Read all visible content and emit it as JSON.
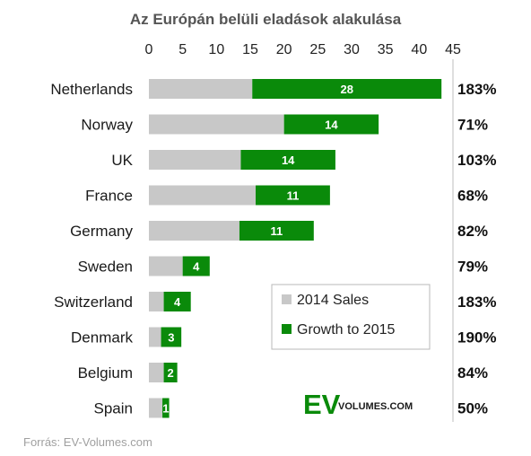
{
  "chart_data": {
    "type": "bar",
    "stacked": true,
    "orientation": "horizontal",
    "title": "Az Európán belüli eladások alakulása",
    "categories": [
      "Netherlands",
      "Norway",
      "UK",
      "France",
      "Germany",
      "Sweden",
      "Switzerland",
      "Denmark",
      "Belgium",
      "Spain"
    ],
    "series": [
      {
        "name": "2014 Sales",
        "color": "#c8c8c8",
        "values": [
          15.3,
          20,
          13.6,
          15.8,
          13.4,
          5,
          2.2,
          1.8,
          2.2,
          2
        ]
      },
      {
        "name": "Growth to 2015",
        "color": "#0a8a0a",
        "values": [
          28,
          14,
          14,
          11,
          11,
          4,
          4,
          3,
          2,
          1
        ]
      }
    ],
    "data_labels": [
      "28",
      "14",
      "14",
      "11",
      "11",
      "4",
      "4",
      "3",
      "2",
      "1"
    ],
    "growth_percent": [
      "183%",
      "71%",
      "103%",
      "68%",
      "82%",
      "79%",
      "183%",
      "190%",
      "84%",
      "50%"
    ],
    "x_ticks": [
      "0",
      "5",
      "10",
      "15",
      "20",
      "25",
      "30",
      "35",
      "40",
      "45"
    ],
    "xlim": [
      0,
      45
    ],
    "axis_position": "top",
    "grid": false,
    "legend_position": "bottom-right-inside"
  },
  "logo": {
    "ev": "EV",
    "text": "VOLUMES.COM"
  },
  "source": "Forrás: EV-Volumes.com"
}
